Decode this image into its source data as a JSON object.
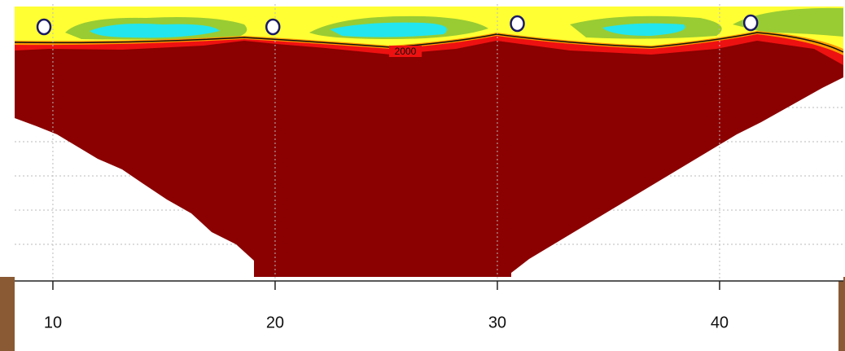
{
  "chart_data": {
    "type": "contour",
    "xlim": [
      8.28,
      45.57
    ],
    "xticks": [
      10,
      20,
      30,
      40
    ],
    "contour_label": "2000",
    "markers": {
      "x": [
        9.6,
        19.9,
        30.9,
        41.4
      ],
      "color": "#ffffff"
    },
    "grid": true
  }
}
